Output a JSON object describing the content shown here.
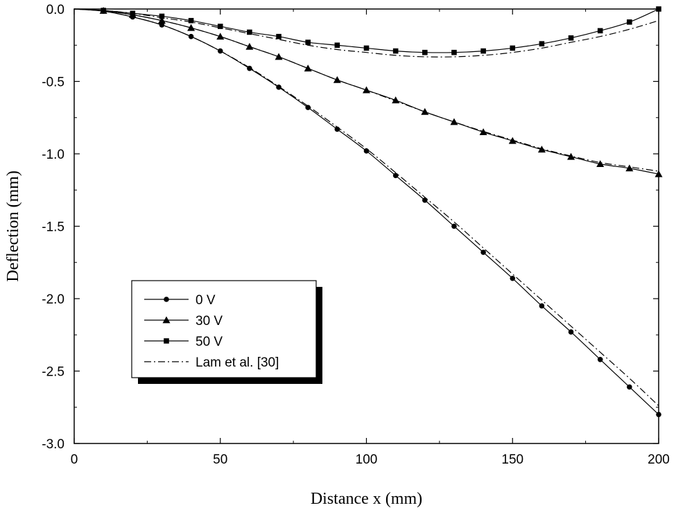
{
  "chart_data": {
    "type": "line",
    "title": "",
    "xlabel": "Distance x (mm)",
    "ylabel": "Deflection (mm)",
    "xlim": [
      0,
      200
    ],
    "ylim": [
      -3.0,
      0.0
    ],
    "x_ticks": [
      0,
      50,
      100,
      150,
      200
    ],
    "x_tick_labels": [
      "0",
      "50",
      "100",
      "150",
      "200"
    ],
    "y_ticks": [
      0.0,
      -0.5,
      -1.0,
      -1.5,
      -2.0,
      -2.5,
      -3.0
    ],
    "y_tick_labels": [
      "0.0",
      "-0.5",
      "-1.0",
      "-1.5",
      "-2.0",
      "-2.5",
      "-3.0"
    ],
    "grid": false,
    "legend_position": "lower-left",
    "series": [
      {
        "name": "0 V",
        "marker": "circle",
        "line": "solid",
        "x": [
          0,
          10,
          20,
          30,
          40,
          50,
          60,
          70,
          80,
          90,
          100,
          110,
          120,
          130,
          140,
          150,
          160,
          170,
          180,
          190,
          200
        ],
        "y": [
          0.0,
          -0.015,
          -0.055,
          -0.11,
          -0.19,
          -0.29,
          -0.41,
          -0.54,
          -0.68,
          -0.83,
          -0.98,
          -1.15,
          -1.32,
          -1.5,
          -1.68,
          -1.86,
          -2.05,
          -2.23,
          -2.42,
          -2.61,
          -2.8
        ]
      },
      {
        "name": "30 V",
        "marker": "triangle",
        "line": "solid",
        "x": [
          0,
          10,
          20,
          30,
          40,
          50,
          60,
          70,
          80,
          90,
          100,
          110,
          120,
          130,
          140,
          150,
          160,
          170,
          180,
          190,
          200
        ],
        "y": [
          0.0,
          -0.012,
          -0.04,
          -0.08,
          -0.13,
          -0.19,
          -0.26,
          -0.33,
          -0.41,
          -0.49,
          -0.56,
          -0.63,
          -0.71,
          -0.78,
          -0.85,
          -0.91,
          -0.97,
          -1.02,
          -1.07,
          -1.1,
          -1.14
        ]
      },
      {
        "name": "50 V",
        "marker": "square",
        "line": "solid",
        "x": [
          0,
          10,
          20,
          30,
          40,
          50,
          60,
          70,
          80,
          90,
          100,
          110,
          120,
          130,
          140,
          150,
          160,
          170,
          180,
          190,
          200
        ],
        "y": [
          0.0,
          -0.01,
          -0.03,
          -0.05,
          -0.08,
          -0.12,
          -0.16,
          -0.19,
          -0.23,
          -0.25,
          -0.27,
          -0.29,
          -0.3,
          -0.3,
          -0.29,
          -0.27,
          -0.24,
          -0.2,
          -0.15,
          -0.09,
          0.0
        ]
      },
      {
        "name": "Lam et al. [30]",
        "marker": "none",
        "line": "dash-dot",
        "curves": [
          {
            "x": [
              0,
              10,
              20,
              30,
              40,
              50,
              60,
              70,
              80,
              90,
              100,
              110,
              120,
              130,
              140,
              150,
              160,
              170,
              180,
              190,
              200
            ],
            "y": [
              0.0,
              -0.015,
              -0.055,
              -0.11,
              -0.19,
              -0.29,
              -0.405,
              -0.535,
              -0.67,
              -0.815,
              -0.965,
              -1.13,
              -1.3,
              -1.47,
              -1.65,
              -1.83,
              -2.01,
              -2.19,
              -2.37,
              -2.55,
              -2.74
            ]
          },
          {
            "x": [
              0,
              10,
              20,
              30,
              40,
              50,
              60,
              70,
              80,
              90,
              100,
              110,
              120,
              130,
              140,
              150,
              160,
              170,
              180,
              190,
              200
            ],
            "y": [
              0.0,
              -0.012,
              -0.04,
              -0.08,
              -0.13,
              -0.19,
              -0.26,
              -0.33,
              -0.41,
              -0.49,
              -0.56,
              -0.635,
              -0.71,
              -0.78,
              -0.845,
              -0.905,
              -0.965,
              -1.015,
              -1.06,
              -1.09,
              -1.12
            ]
          },
          {
            "x": [
              0,
              10,
              20,
              30,
              40,
              50,
              60,
              70,
              80,
              90,
              100,
              110,
              120,
              130,
              140,
              150,
              160,
              170,
              180,
              190,
              200
            ],
            "y": [
              0.0,
              -0.01,
              -0.03,
              -0.06,
              -0.09,
              -0.13,
              -0.17,
              -0.21,
              -0.25,
              -0.28,
              -0.3,
              -0.32,
              -0.33,
              -0.33,
              -0.32,
              -0.3,
              -0.27,
              -0.23,
              -0.19,
              -0.14,
              -0.08
            ]
          }
        ]
      }
    ]
  }
}
